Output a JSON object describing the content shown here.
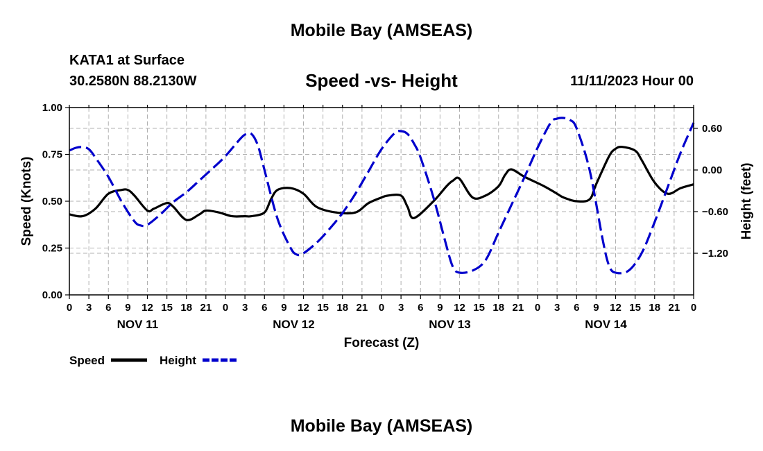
{
  "header": {
    "title": "Mobile Bay (AMSEAS)",
    "station": "KATA1 at Surface",
    "coords": "30.2580N  88.2130W",
    "subtitle": "Speed -vs- Height",
    "datetime": "11/11/2023 Hour 00"
  },
  "footer": {
    "title": "Mobile Bay (AMSEAS)"
  },
  "chart_data": {
    "type": "line",
    "xlabel": "Forecast (Z)",
    "x_unit": "hours",
    "xlim": [
      0,
      96
    ],
    "x_tick_step": 3,
    "x_tick_labels": [
      "0",
      "3",
      "6",
      "9",
      "12",
      "15",
      "18",
      "21",
      "0",
      "3",
      "6",
      "9",
      "12",
      "15",
      "18",
      "21",
      "0",
      "3",
      "6",
      "9",
      "12",
      "15",
      "18",
      "21",
      "0",
      "3",
      "6",
      "9",
      "12",
      "15",
      "18",
      "21",
      "0"
    ],
    "day_labels": [
      {
        "label": "NOV 11",
        "x": 10.5
      },
      {
        "label": "NOV 12",
        "x": 34.5
      },
      {
        "label": "NOV 13",
        "x": 58.5
      },
      {
        "label": "NOV 14",
        "x": 82.5
      }
    ],
    "grid": true,
    "left_axis": {
      "label": "Speed (Knots)",
      "ylim": [
        0,
        1
      ],
      "ticks": [
        0,
        0.25,
        0.5,
        0.75,
        1.0
      ],
      "tick_labels": [
        "0.00",
        "0.25",
        "0.50",
        "0.75",
        "1.00"
      ]
    },
    "right_axis": {
      "label": "Height (feet)",
      "ylim": [
        -1.8,
        0.9
      ],
      "ticks": [
        -1.2,
        -0.6,
        0.0,
        0.6
      ],
      "tick_labels": [
        "−1.20",
        "−0.60",
        "0.00",
        "0.60"
      ]
    },
    "series": [
      {
        "name": "Speed",
        "axis": "left",
        "color": "#000000",
        "style": "solid",
        "x": [
          0,
          2,
          4,
          6,
          8,
          9,
          10,
          12,
          13,
          15,
          16,
          18,
          20,
          21,
          23,
          25,
          27,
          28,
          30,
          31,
          32,
          34,
          36,
          38,
          41,
          44,
          46,
          48,
          49,
          51,
          52,
          53,
          56,
          58,
          59,
          60,
          62,
          64,
          66,
          67,
          68,
          70,
          73,
          75,
          76,
          78,
          80,
          81,
          83,
          84,
          85,
          87,
          88,
          90,
          92,
          94,
          96
        ],
        "values": [
          0.43,
          0.42,
          0.46,
          0.54,
          0.56,
          0.56,
          0.53,
          0.45,
          0.46,
          0.49,
          0.47,
          0.4,
          0.43,
          0.45,
          0.44,
          0.42,
          0.42,
          0.42,
          0.44,
          0.51,
          0.56,
          0.57,
          0.54,
          0.47,
          0.44,
          0.44,
          0.49,
          0.52,
          0.53,
          0.53,
          0.47,
          0.41,
          0.5,
          0.58,
          0.61,
          0.62,
          0.52,
          0.53,
          0.58,
          0.64,
          0.67,
          0.63,
          0.58,
          0.54,
          0.52,
          0.5,
          0.51,
          0.59,
          0.74,
          0.78,
          0.79,
          0.77,
          0.72,
          0.6,
          0.54,
          0.57,
          0.59
        ]
      },
      {
        "name": "Height",
        "axis": "right",
        "color": "#0000cc",
        "style": "dashed",
        "x": [
          0,
          1,
          2,
          3,
          4,
          6,
          8,
          10,
          11,
          12,
          14,
          16,
          18,
          20,
          22,
          24,
          26,
          27,
          28,
          29,
          30,
          32,
          34,
          35,
          36,
          38,
          40,
          42,
          44,
          46,
          48,
          50,
          51,
          52,
          53,
          54,
          56,
          58,
          59,
          60,
          62,
          64,
          66,
          68,
          70,
          72,
          74,
          75,
          76,
          77,
          78,
          80,
          82,
          83,
          84,
          86,
          88,
          90,
          92,
          94,
          96
        ],
        "values": [
          0.28,
          0.32,
          0.33,
          0.3,
          0.18,
          -0.1,
          -0.45,
          -0.74,
          -0.8,
          -0.79,
          -0.64,
          -0.46,
          -0.32,
          -0.15,
          0.02,
          0.2,
          0.42,
          0.51,
          0.52,
          0.35,
          0.0,
          -0.7,
          -1.12,
          -1.22,
          -1.2,
          -1.05,
          -0.85,
          -0.62,
          -0.34,
          -0.02,
          0.3,
          0.53,
          0.56,
          0.52,
          0.38,
          0.18,
          -0.4,
          -1.1,
          -1.4,
          -1.48,
          -1.45,
          -1.3,
          -0.9,
          -0.5,
          -0.1,
          0.32,
          0.68,
          0.74,
          0.75,
          0.72,
          0.6,
          0.0,
          -1.0,
          -1.38,
          -1.48,
          -1.45,
          -1.2,
          -0.75,
          -0.25,
          0.25,
          0.68
        ]
      }
    ]
  }
}
